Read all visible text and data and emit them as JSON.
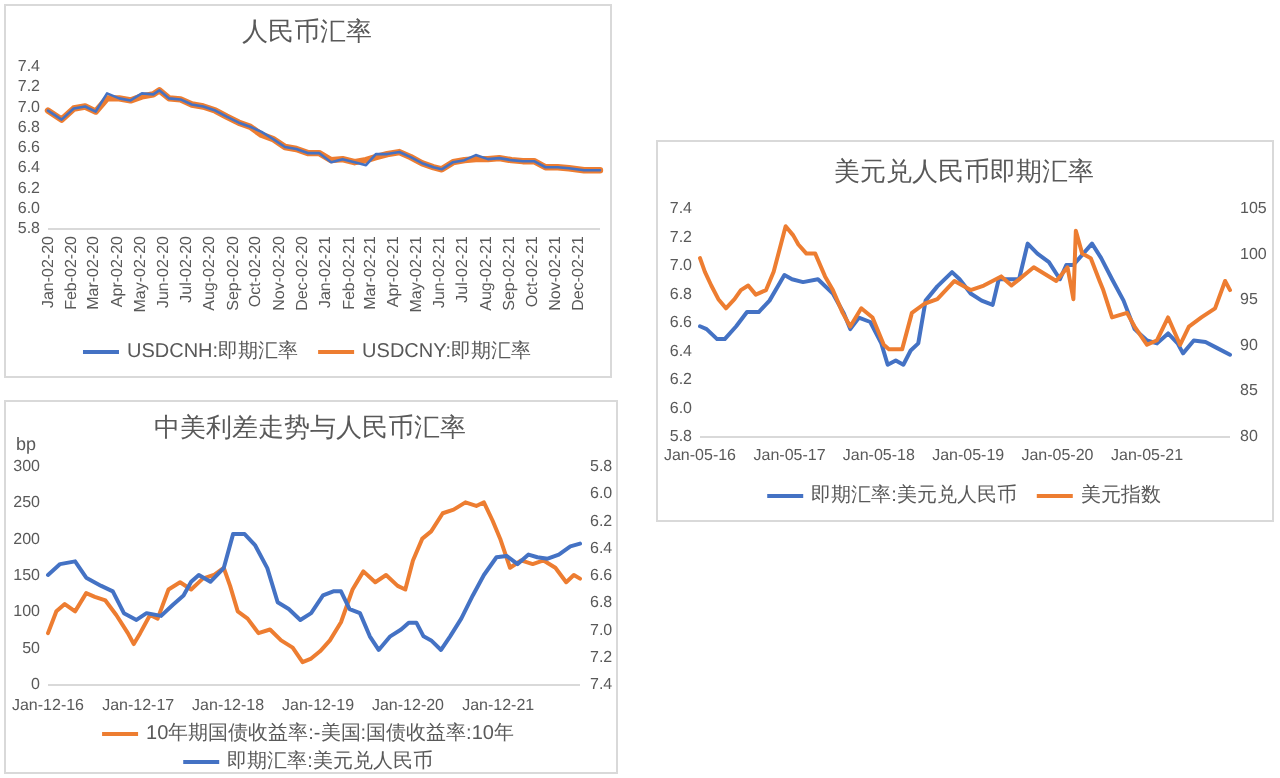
{
  "chart_data": [
    {
      "type": "line",
      "title": "人民币汇率",
      "legend": "bottom",
      "x": [
        "2020-01-02",
        "2020-01-20",
        "2020-02-05",
        "2020-02-20",
        "2020-03-05",
        "2020-03-20",
        "2020-04-05",
        "2020-04-20",
        "2020-05-05",
        "2020-05-20",
        "2020-05-28",
        "2020-06-10",
        "2020-06-25",
        "2020-07-10",
        "2020-07-25",
        "2020-08-10",
        "2020-08-25",
        "2020-09-10",
        "2020-09-25",
        "2020-10-10",
        "2020-10-25",
        "2020-11-10",
        "2020-11-25",
        "2020-12-10",
        "2020-12-25",
        "2021-01-10",
        "2021-01-25",
        "2021-02-10",
        "2021-02-25",
        "2021-03-10",
        "2021-03-25",
        "2021-04-10",
        "2021-04-25",
        "2021-05-10",
        "2021-05-25",
        "2021-06-05",
        "2021-06-20",
        "2021-07-05",
        "2021-07-20",
        "2021-08-05",
        "2021-08-20",
        "2021-09-05",
        "2021-09-20",
        "2021-10-05",
        "2021-10-20",
        "2021-11-05",
        "2021-11-20",
        "2021-12-10",
        "2021-12-31"
      ],
      "series": [
        {
          "name": "USDCNH:即期汇率",
          "color": "#4472c4",
          "values": [
            6.96,
            6.87,
            6.98,
            7.0,
            6.95,
            7.13,
            7.08,
            7.06,
            7.13,
            7.12,
            7.16,
            7.08,
            7.07,
            7.02,
            7.0,
            6.96,
            6.9,
            6.84,
            6.8,
            6.75,
            6.68,
            6.6,
            6.58,
            6.54,
            6.54,
            6.45,
            6.48,
            6.45,
            6.42,
            6.53,
            6.53,
            6.55,
            6.5,
            6.44,
            6.4,
            6.38,
            6.45,
            6.47,
            6.52,
            6.48,
            6.49,
            6.47,
            6.46,
            6.46,
            6.4,
            6.4,
            6.39,
            6.37,
            6.37
          ]
        },
        {
          "name": "USDCNY:即期汇率",
          "color": "#ed7d31",
          "values": [
            6.96,
            6.87,
            6.98,
            7.0,
            6.95,
            7.08,
            7.08,
            7.06,
            7.1,
            7.12,
            7.16,
            7.08,
            7.07,
            7.02,
            7.0,
            6.96,
            6.9,
            6.84,
            6.8,
            6.72,
            6.68,
            6.6,
            6.58,
            6.54,
            6.54,
            6.47,
            6.48,
            6.45,
            6.47,
            6.5,
            6.53,
            6.55,
            6.5,
            6.44,
            6.4,
            6.38,
            6.45,
            6.47,
            6.48,
            6.48,
            6.49,
            6.47,
            6.46,
            6.46,
            6.4,
            6.4,
            6.39,
            6.37,
            6.37
          ]
        }
      ],
      "xlim": [
        "2020-01-02",
        "2021-12-31"
      ],
      "xticks": [
        {
          "value": "2020-01-02",
          "label": "Jan-02-20"
        },
        {
          "value": "2020-02-02",
          "label": "Feb-02-20"
        },
        {
          "value": "2020-03-02",
          "label": "Mar-02-20"
        },
        {
          "value": "2020-04-02",
          "label": "Apr-02-20"
        },
        {
          "value": "2020-05-02",
          "label": "May-02-20"
        },
        {
          "value": "2020-06-02",
          "label": "Jun-02-20"
        },
        {
          "value": "2020-07-02",
          "label": "Jul-02-20"
        },
        {
          "value": "2020-08-02",
          "label": "Aug-02-20"
        },
        {
          "value": "2020-09-02",
          "label": "Sep-02-20"
        },
        {
          "value": "2020-10-02",
          "label": "Oct-02-20"
        },
        {
          "value": "2020-11-02",
          "label": "Nov-02-20"
        },
        {
          "value": "2020-12-02",
          "label": "Dec-02-20"
        },
        {
          "value": "2021-01-02",
          "label": "Jan-02-21"
        },
        {
          "value": "2021-02-02",
          "label": "Feb-02-21"
        },
        {
          "value": "2021-03-02",
          "label": "Mar-02-21"
        },
        {
          "value": "2021-04-02",
          "label": "Apr-02-21"
        },
        {
          "value": "2021-05-02",
          "label": "May-02-21"
        },
        {
          "value": "2021-06-02",
          "label": "Jun-02-21"
        },
        {
          "value": "2021-07-02",
          "label": "Jul-02-21"
        },
        {
          "value": "2021-08-02",
          "label": "Aug-02-21"
        },
        {
          "value": "2021-09-02",
          "label": "Sep-02-21"
        },
        {
          "value": "2021-10-02",
          "label": "Oct-02-21"
        },
        {
          "value": "2021-11-02",
          "label": "Nov-02-21"
        },
        {
          "value": "2021-12-02",
          "label": "Dec-02-21"
        }
      ],
      "ylim": [
        5.8,
        7.4
      ],
      "yticks": [
        {
          "value": 5.8,
          "label": "5.8"
        },
        {
          "value": 6,
          "label": "6.0"
        },
        {
          "value": 6.2,
          "label": "6.2"
        },
        {
          "value": 6.4,
          "label": "6.4"
        },
        {
          "value": 6.6,
          "label": "6.6"
        },
        {
          "value": 6.8,
          "label": "6.8"
        },
        {
          "value": 7,
          "label": "7.0"
        },
        {
          "value": 7.2,
          "label": "7.2"
        },
        {
          "value": 7.4,
          "label": "7.4"
        }
      ]
    },
    {
      "type": "line",
      "title": "美元兑人民币即期汇率",
      "legend": "bottom",
      "series": [
        {
          "name": "即期汇率:美元兑人民币",
          "color": "#4472c4",
          "x": [
            "2016-01-05",
            "2016-02-01",
            "2016-03-15",
            "2016-04-15",
            "2016-06-01",
            "2016-07-15",
            "2016-09-01",
            "2016-10-15",
            "2016-12-15",
            "2017-01-15",
            "2017-03-01",
            "2017-05-01",
            "2017-07-01",
            "2017-08-15",
            "2017-09-10",
            "2017-10-15",
            "2017-12-01",
            "2018-01-15",
            "2018-02-10",
            "2018-03-15",
            "2018-04-15",
            "2018-05-15",
            "2018-06-15",
            "2018-07-15",
            "2018-09-01",
            "2018-10-31",
            "2018-12-01",
            "2019-01-15",
            "2019-03-01",
            "2019-04-15",
            "2019-05-10",
            "2019-06-15",
            "2019-08-01",
            "2019-09-05",
            "2019-10-15",
            "2019-12-01",
            "2020-01-15",
            "2020-02-10",
            "2020-03-10",
            "2020-05-25",
            "2020-07-01",
            "2020-08-15",
            "2020-10-01",
            "2020-11-15",
            "2021-01-05",
            "2021-02-15",
            "2021-04-01",
            "2021-05-10",
            "2021-06-01",
            "2021-07-15",
            "2021-09-01",
            "2021-10-15",
            "2021-12-10"
          ],
          "values": [
            6.57,
            6.55,
            6.48,
            6.48,
            6.57,
            6.67,
            6.67,
            6.75,
            6.93,
            6.9,
            6.88,
            6.9,
            6.8,
            6.66,
            6.55,
            6.63,
            6.6,
            6.45,
            6.3,
            6.33,
            6.3,
            6.4,
            6.45,
            6.75,
            6.85,
            6.95,
            6.9,
            6.8,
            6.75,
            6.72,
            6.9,
            6.9,
            6.9,
            7.15,
            7.08,
            7.02,
            6.9,
            7.0,
            7.0,
            7.15,
            7.05,
            6.9,
            6.75,
            6.55,
            6.47,
            6.45,
            6.52,
            6.45,
            6.38,
            6.47,
            6.46,
            6.42,
            6.37
          ]
        },
        {
          "name": "美元指数",
          "color": "#ed7d31",
          "axis": "y2",
          "x": [
            "2016-01-05",
            "2016-01-25",
            "2016-02-20",
            "2016-03-20",
            "2016-04-20",
            "2016-05-25",
            "2016-06-20",
            "2016-07-20",
            "2016-08-20",
            "2016-10-01",
            "2016-11-01",
            "2016-12-20",
            "2017-01-20",
            "2017-02-10",
            "2017-03-15",
            "2017-04-20",
            "2017-05-30",
            "2017-07-01",
            "2017-08-10",
            "2017-09-10",
            "2017-10-25",
            "2017-12-10",
            "2018-01-25",
            "2018-02-15",
            "2018-04-10",
            "2018-05-20",
            "2018-07-10",
            "2018-09-01",
            "2018-11-10",
            "2019-01-15",
            "2019-03-10",
            "2019-05-20",
            "2019-07-01",
            "2019-09-30",
            "2019-12-31",
            "2020-02-15",
            "2020-03-10",
            "2020-03-20",
            "2020-04-15",
            "2020-05-20",
            "2020-06-25",
            "2020-07-10",
            "2020-08-15",
            "2020-10-15",
            "2020-11-15",
            "2021-01-05",
            "2021-02-15",
            "2021-04-01",
            "2021-05-20",
            "2021-06-25",
            "2021-08-15",
            "2021-10-10",
            "2021-11-20",
            "2021-12-10"
          ],
          "values": [
            99.5,
            98,
            96.5,
            95,
            94,
            95,
            96,
            96.5,
            95.5,
            96,
            98,
            103,
            102,
            101,
            100,
            100,
            97.5,
            96,
            93.5,
            92,
            94,
            93,
            90,
            89.5,
            89.5,
            93.5,
            94.5,
            95,
            97,
            96,
            96.5,
            97.5,
            96.5,
            98.5,
            97,
            98.5,
            95,
            102.5,
            100,
            99.5,
            97,
            96,
            93,
            93.5,
            92,
            90,
            90.5,
            93,
            90,
            92,
            93,
            94,
            97,
            96
          ]
        }
      ],
      "xlim": [
        "2016-01-05",
        "2021-12-10"
      ],
      "xticks": [
        {
          "value": "2016-01-05",
          "label": "Jan-05-16"
        },
        {
          "value": "2017-01-05",
          "label": "Jan-05-17"
        },
        {
          "value": "2018-01-05",
          "label": "Jan-05-18"
        },
        {
          "value": "2019-01-05",
          "label": "Jan-05-19"
        },
        {
          "value": "2020-01-05",
          "label": "Jan-05-20"
        },
        {
          "value": "2021-01-05",
          "label": "Jan-05-21"
        }
      ],
      "ylim": [
        5.8,
        7.4
      ],
      "yticks": [
        {
          "value": 5.8,
          "label": "5.8"
        },
        {
          "value": 6,
          "label": "6.0"
        },
        {
          "value": 6.2,
          "label": "6.2"
        },
        {
          "value": 6.4,
          "label": "6.4"
        },
        {
          "value": 6.6,
          "label": "6.6"
        },
        {
          "value": 6.8,
          "label": "6.8"
        },
        {
          "value": 7,
          "label": "7.0"
        },
        {
          "value": 7.2,
          "label": "7.2"
        },
        {
          "value": 7.4,
          "label": "7.4"
        }
      ],
      "y2lim": [
        80,
        105
      ],
      "y2ticks": [
        80,
        85,
        90,
        95,
        100,
        105
      ]
    },
    {
      "type": "line",
      "title": "中美利差走势与人民币汇率",
      "ylabel": "bp",
      "legend": "bottom",
      "series": [
        {
          "name": "10年期国债收益率:-美国:国债收益率:10年",
          "color": "#ed7d31",
          "x": [
            "2016-01-12",
            "2016-02-15",
            "2016-03-20",
            "2016-05-01",
            "2016-06-15",
            "2016-07-20",
            "2016-09-01",
            "2016-10-15",
            "2016-12-01",
            "2016-12-25",
            "2017-01-20",
            "2017-03-01",
            "2017-04-01",
            "2017-05-15",
            "2017-07-01",
            "2017-08-15",
            "2017-10-01",
            "2017-11-15",
            "2017-12-25",
            "2018-01-20",
            "2018-02-20",
            "2018-04-01",
            "2018-05-15",
            "2018-07-01",
            "2018-08-15",
            "2018-10-01",
            "2018-11-10",
            "2018-12-15",
            "2019-01-20",
            "2019-03-01",
            "2019-04-15",
            "2019-06-01",
            "2019-07-15",
            "2019-09-01",
            "2019-10-15",
            "2019-12-01",
            "2020-01-01",
            "2020-02-01",
            "2020-03-10",
            "2020-04-15",
            "2020-06-01",
            "2020-07-15",
            "2020-09-01",
            "2020-10-15",
            "2020-11-15",
            "2020-12-20",
            "2021-01-20",
            "2021-03-01",
            "2021-04-15",
            "2021-06-01",
            "2021-07-15",
            "2021-09-01",
            "2021-10-15",
            "2021-11-15",
            "2021-12-10"
          ],
          "values": [
            70,
            100,
            110,
            100,
            125,
            120,
            115,
            95,
            70,
            55,
            70,
            95,
            90,
            130,
            140,
            130,
            145,
            150,
            160,
            135,
            100,
            90,
            70,
            75,
            60,
            50,
            30,
            35,
            45,
            60,
            85,
            130,
            155,
            140,
            150,
            135,
            130,
            170,
            200,
            210,
            235,
            240,
            250,
            245,
            250,
            225,
            200,
            160,
            170,
            165,
            170,
            160,
            140,
            150,
            145
          ]
        },
        {
          "name": "即期汇率:美元兑人民币",
          "color": "#4472c4",
          "axis": "y2",
          "x": [
            "2016-01-12",
            "2016-03-01",
            "2016-05-01",
            "2016-06-15",
            "2016-08-15",
            "2016-10-01",
            "2016-11-15",
            "2017-01-05",
            "2017-02-15",
            "2017-04-15",
            "2017-06-01",
            "2017-07-15",
            "2017-08-15",
            "2017-09-15",
            "2017-11-01",
            "2017-12-25",
            "2018-02-01",
            "2018-03-20",
            "2018-05-01",
            "2018-06-20",
            "2018-08-01",
            "2018-09-15",
            "2018-11-01",
            "2018-12-15",
            "2019-02-01",
            "2019-03-15",
            "2019-04-15",
            "2019-05-20",
            "2019-07-01",
            "2019-08-10",
            "2019-09-15",
            "2019-11-01",
            "2019-12-15",
            "2020-01-15",
            "2020-02-15",
            "2020-03-15",
            "2020-04-15",
            "2020-05-25",
            "2020-07-01",
            "2020-08-15",
            "2020-10-01",
            "2020-11-15",
            "2021-01-05",
            "2021-02-15",
            "2021-04-01",
            "2021-05-15",
            "2021-06-20",
            "2021-08-01",
            "2021-09-15",
            "2021-11-01",
            "2021-12-10"
          ],
          "values": [
            6.6,
            6.52,
            6.5,
            6.62,
            6.68,
            6.72,
            6.88,
            6.93,
            6.88,
            6.9,
            6.82,
            6.75,
            6.65,
            6.6,
            6.65,
            6.55,
            6.3,
            6.3,
            6.38,
            6.55,
            6.8,
            6.85,
            6.93,
            6.88,
            6.75,
            6.72,
            6.72,
            6.85,
            6.88,
            7.05,
            7.15,
            7.05,
            7.0,
            6.95,
            6.95,
            7.05,
            7.08,
            7.15,
            7.05,
            6.92,
            6.75,
            6.6,
            6.47,
            6.46,
            6.52,
            6.45,
            6.47,
            6.48,
            6.45,
            6.39,
            6.37
          ]
        }
      ],
      "xlim": [
        "2016-01-12",
        "2021-12-10"
      ],
      "xticks": [
        {
          "value": "2016-01-12",
          "label": "Jan-12-16"
        },
        {
          "value": "2017-01-12",
          "label": "Jan-12-17"
        },
        {
          "value": "2018-01-12",
          "label": "Jan-12-18"
        },
        {
          "value": "2019-01-12",
          "label": "Jan-12-19"
        },
        {
          "value": "2020-01-12",
          "label": "Jan-12-20"
        },
        {
          "value": "2021-01-12",
          "label": "Jan-12-21"
        }
      ],
      "ylim": [
        0,
        300
      ],
      "yticks": [
        0,
        50,
        100,
        150,
        200,
        250,
        300
      ],
      "y2lim": [
        7.4,
        5.8
      ],
      "y2ticks": [
        {
          "value": 5.8,
          "label": "5.8"
        },
        {
          "value": 6,
          "label": "6.0"
        },
        {
          "value": 6.2,
          "label": "6.2"
        },
        {
          "value": 6.4,
          "label": "6.4"
        },
        {
          "value": 6.6,
          "label": "6.6"
        },
        {
          "value": 6.8,
          "label": "6.8"
        },
        {
          "value": 7,
          "label": "7.0"
        },
        {
          "value": 7.2,
          "label": "7.2"
        },
        {
          "value": 7.4,
          "label": "7.4"
        }
      ]
    }
  ]
}
